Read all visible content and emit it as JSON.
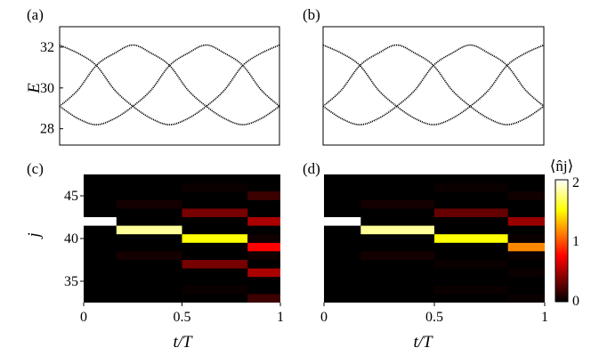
{
  "chart_data": [
    {
      "panel_label": "(a)",
      "type": "line",
      "ylabel": "E",
      "xlim": [
        0,
        1
      ],
      "ylim": [
        27.2,
        33.0
      ],
      "yticks": [
        "28",
        "30",
        "32"
      ],
      "series": [
        {
          "curve": "band-1",
          "x": [
            0,
            0.0833,
            0.1667,
            0.25,
            0.3333,
            0.4167,
            0.5,
            0.5833,
            0.6667,
            0.75,
            0.8333,
            0.9167,
            1
          ],
          "y": [
            32.1,
            31.7,
            31.1,
            29.9,
            29.1,
            28.5,
            28.2,
            28.5,
            29.1,
            29.9,
            31.1,
            31.7,
            32.1
          ]
        },
        {
          "curve": "band-2",
          "x": [
            0,
            0.0833,
            0.1667,
            0.25,
            0.3333,
            0.4167,
            0.5,
            0.5833,
            0.6667,
            0.75,
            0.8333,
            0.9167,
            1
          ],
          "y": [
            29.1,
            29.9,
            31.1,
            31.7,
            32.1,
            31.7,
            31.1,
            29.9,
            29.1,
            28.5,
            28.2,
            28.5,
            29.1
          ]
        },
        {
          "curve": "band-3",
          "x": [
            0,
            0.0833,
            0.1667,
            0.25,
            0.3333,
            0.4167,
            0.5,
            0.5833,
            0.6667,
            0.75,
            0.8333,
            0.9167,
            1
          ],
          "y": [
            29.1,
            28.5,
            28.2,
            28.5,
            29.1,
            29.9,
            31.1,
            31.7,
            32.1,
            31.7,
            31.1,
            29.9,
            29.1
          ]
        }
      ]
    },
    {
      "panel_label": "(b)",
      "type": "line",
      "xlim": [
        0,
        1
      ],
      "ylim": [
        27.2,
        33.0
      ],
      "series": [
        {
          "curve": "band-1",
          "x": [
            0,
            0.0833,
            0.1667,
            0.25,
            0.3333,
            0.4167,
            0.5,
            0.5833,
            0.6667,
            0.75,
            0.8333,
            0.9167,
            1
          ],
          "y": [
            32.1,
            31.7,
            31.1,
            29.9,
            29.1,
            28.5,
            28.2,
            28.5,
            29.1,
            29.9,
            31.1,
            31.7,
            32.1
          ]
        },
        {
          "curve": "band-2",
          "x": [
            0,
            0.0833,
            0.1667,
            0.25,
            0.3333,
            0.4167,
            0.5,
            0.5833,
            0.6667,
            0.75,
            0.8333,
            0.9167,
            1
          ],
          "y": [
            29.1,
            29.9,
            31.1,
            31.7,
            32.1,
            31.7,
            31.1,
            29.9,
            29.1,
            28.5,
            28.2,
            28.5,
            29.1
          ]
        },
        {
          "curve": "band-3",
          "x": [
            0,
            0.0833,
            0.1667,
            0.25,
            0.3333,
            0.4167,
            0.5,
            0.5833,
            0.6667,
            0.75,
            0.8333,
            0.9167,
            1
          ],
          "y": [
            29.1,
            28.5,
            28.2,
            28.5,
            29.1,
            29.9,
            31.1,
            31.7,
            32.1,
            31.7,
            31.1,
            29.9,
            29.1
          ]
        }
      ]
    },
    {
      "panel_label": "(c)",
      "type": "heatmap",
      "ylabel": "j",
      "xlabel": "t/T",
      "xlim": [
        0,
        1
      ],
      "ylim": [
        32.5,
        47.5
      ],
      "xticks": [
        "0",
        "0.5",
        "1"
      ],
      "yticks": [
        "35",
        "40",
        "45"
      ],
      "zlim": [
        0,
        2
      ],
      "background_value": 0,
      "cells": [
        {
          "t": [
            0,
            0.1667
          ],
          "j": 42,
          "v": 2.0
        },
        {
          "t": [
            0.1667,
            0.5
          ],
          "j": 41,
          "v": 1.8
        },
        {
          "t": [
            0.1667,
            0.5
          ],
          "j": 44,
          "v": 0.06
        },
        {
          "t": [
            0.1667,
            0.5
          ],
          "j": 38,
          "v": 0.06
        },
        {
          "t": [
            0.5,
            0.8333
          ],
          "j": 40,
          "v": 1.5
        },
        {
          "t": [
            0.5,
            0.8333
          ],
          "j": 43,
          "v": 0.35
        },
        {
          "t": [
            0.5,
            0.8333
          ],
          "j": 37,
          "v": 0.35
        },
        {
          "t": [
            0.5,
            0.8333
          ],
          "j": 46,
          "v": 0.03
        },
        {
          "t": [
            0.5,
            0.8333
          ],
          "j": 34,
          "v": 0.03
        },
        {
          "t": [
            0.8333,
            1
          ],
          "j": 39,
          "v": 0.75
        },
        {
          "t": [
            0.8333,
            1
          ],
          "j": 42,
          "v": 0.5
        },
        {
          "t": [
            0.8333,
            1
          ],
          "j": 36,
          "v": 0.5
        },
        {
          "t": [
            0.8333,
            1
          ],
          "j": 45,
          "v": 0.18
        },
        {
          "t": [
            0.8333,
            1
          ],
          "j": 33,
          "v": 0.18
        },
        {
          "t": [
            0.8333,
            1
          ],
          "j": 40,
          "v": 0.05
        },
        {
          "t": [
            0.8333,
            1
          ],
          "j": 38,
          "v": 0.05
        }
      ]
    },
    {
      "panel_label": "(d)",
      "type": "heatmap",
      "xlabel": "t/T",
      "xlim": [
        0,
        1
      ],
      "ylim": [
        32.5,
        47.5
      ],
      "xticks": [
        "0",
        "0.5",
        "1"
      ],
      "zlim": [
        0,
        2
      ],
      "background_value": 0,
      "cells": [
        {
          "t": [
            0,
            0.1667
          ],
          "j": 42,
          "v": 2.0
        },
        {
          "t": [
            0.1667,
            0.5
          ],
          "j": 41,
          "v": 1.8
        },
        {
          "t": [
            0.1667,
            0.5
          ],
          "j": 44,
          "v": 0.06
        },
        {
          "t": [
            0.1667,
            0.5
          ],
          "j": 38,
          "v": 0.06
        },
        {
          "t": [
            0.5,
            0.8333
          ],
          "j": 40,
          "v": 1.5
        },
        {
          "t": [
            0.5,
            0.8333
          ],
          "j": 43,
          "v": 0.3
        },
        {
          "t": [
            0.5,
            0.8333
          ],
          "j": 37,
          "v": 0.03
        },
        {
          "t": [
            0.5,
            0.8333
          ],
          "j": 46,
          "v": 0.03
        },
        {
          "t": [
            0.5,
            0.8333
          ],
          "j": 34,
          "v": 0.03
        },
        {
          "t": [
            0.8333,
            1
          ],
          "j": 39,
          "v": 1.15
        },
        {
          "t": [
            0.8333,
            1
          ],
          "j": 42,
          "v": 0.45
        },
        {
          "t": [
            0.8333,
            1
          ],
          "j": 36,
          "v": 0.03
        },
        {
          "t": [
            0.8333,
            1
          ],
          "j": 45,
          "v": 0.05
        },
        {
          "t": [
            0.8333,
            1
          ],
          "j": 33,
          "v": 0.03
        },
        {
          "t": [
            0.8333,
            1
          ],
          "j": 40,
          "v": 0.03
        },
        {
          "t": [
            0.8333,
            1
          ],
          "j": 38,
          "v": 0.03
        }
      ]
    }
  ],
  "colorbar": {
    "label": "⟨n̂j⟩",
    "ticks": [
      "2",
      "1",
      "0"
    ],
    "range": [
      0,
      2
    ],
    "colormap": "hot"
  }
}
